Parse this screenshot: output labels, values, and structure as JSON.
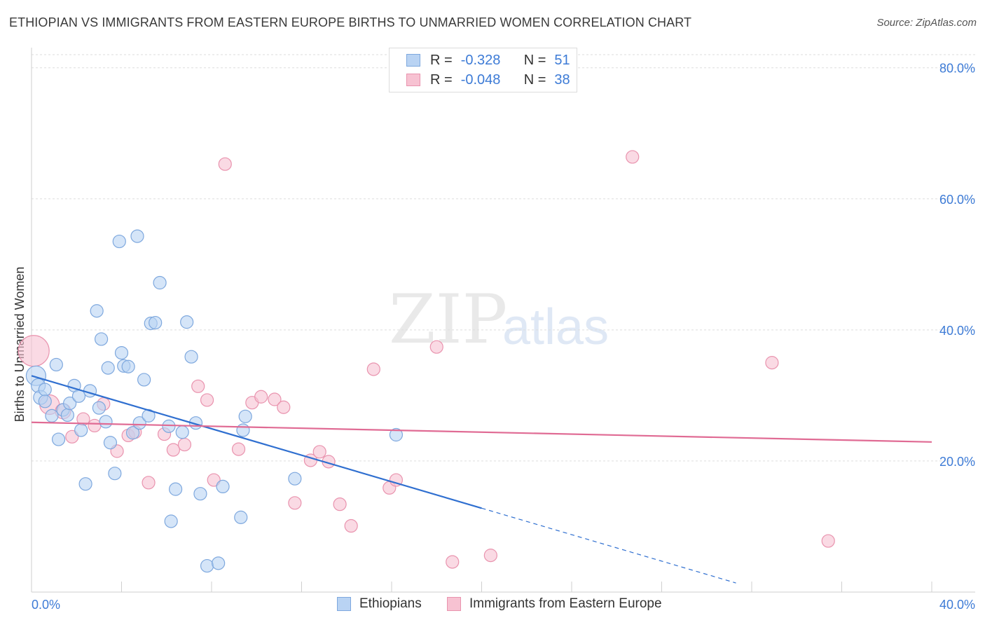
{
  "header": {
    "title": "ETHIOPIAN VS IMMIGRANTS FROM EASTERN EUROPE BIRTHS TO UNMARRIED WOMEN CORRELATION CHART",
    "source": "Source: ZipAtlas.com"
  },
  "watermark": {
    "zip": "ZIP",
    "atlas": "atlas"
  },
  "legend": {
    "rows": [
      {
        "r_label": "R =",
        "r_value": "-0.328",
        "n_label": "N =",
        "n_value": "51"
      },
      {
        "r_label": "R =",
        "r_value": "-0.048",
        "n_label": "N =",
        "n_value": "38"
      }
    ]
  },
  "bottom_legend": {
    "series1": "Ethiopians",
    "series2": "Immigrants from Eastern Europe"
  },
  "colors": {
    "blue_fill": "#b9d3f3",
    "blue_stroke": "#7ea8de",
    "blue_line": "#2f6fd0",
    "pink_fill": "#f7c2d2",
    "pink_stroke": "#e993ae",
    "pink_line": "#e06b94",
    "tick_text": "#3d7bd6"
  },
  "chart_data": {
    "type": "scatter",
    "title": "ETHIOPIAN VS IMMIGRANTS FROM EASTERN EUROPE BIRTHS TO UNMARRIED WOMEN CORRELATION CHART",
    "xlabel": "",
    "ylabel": "Births to Unmarried Women",
    "xlim": [
      0,
      40
    ],
    "ylim": [
      0,
      82
    ],
    "x_tick_labels": [
      "0.0%",
      "40.0%"
    ],
    "y_ticks": [
      20,
      40,
      60,
      80
    ],
    "y_tick_labels": [
      "20.0%",
      "40.0%",
      "60.0%",
      "80.0%"
    ],
    "grid": true,
    "legend_position": "top-center",
    "series": [
      {
        "name": "Ethiopians",
        "r": -0.328,
        "n": 51,
        "trend": {
          "x0": 0,
          "y0": 33.0,
          "x1": 20,
          "y1": 12.8,
          "dash_to_x": 31.3
        },
        "points": [
          [
            0.2,
            33.0,
            14
          ],
          [
            0.3,
            31.5,
            10
          ],
          [
            0.4,
            29.7,
            10
          ],
          [
            0.6,
            30.9,
            9
          ],
          [
            0.6,
            29.1,
            9
          ],
          [
            0.9,
            26.9,
            9
          ],
          [
            1.1,
            34.7,
            9
          ],
          [
            1.2,
            23.3,
            9
          ],
          [
            1.4,
            27.8,
            9
          ],
          [
            1.6,
            27.0,
            9
          ],
          [
            1.7,
            28.8,
            9
          ],
          [
            1.9,
            31.5,
            9
          ],
          [
            2.1,
            29.9,
            9
          ],
          [
            2.2,
            24.7,
            9
          ],
          [
            2.4,
            16.5,
            9
          ],
          [
            2.6,
            30.7,
            9
          ],
          [
            2.9,
            42.9,
            9
          ],
          [
            3.0,
            28.1,
            9
          ],
          [
            3.1,
            38.6,
            9
          ],
          [
            3.3,
            26.0,
            9
          ],
          [
            3.4,
            34.2,
            9
          ],
          [
            3.5,
            22.8,
            9
          ],
          [
            3.7,
            18.1,
            9
          ],
          [
            3.9,
            53.5,
            9
          ],
          [
            4.0,
            36.5,
            9
          ],
          [
            4.1,
            34.5,
            9
          ],
          [
            4.3,
            34.4,
            9
          ],
          [
            4.5,
            24.3,
            9
          ],
          [
            4.7,
            54.3,
            9
          ],
          [
            4.8,
            25.8,
            9
          ],
          [
            5.0,
            32.4,
            9
          ],
          [
            5.2,
            26.9,
            9
          ],
          [
            5.3,
            41.0,
            9
          ],
          [
            5.5,
            41.1,
            9
          ],
          [
            5.7,
            47.2,
            9
          ],
          [
            6.1,
            25.3,
            9
          ],
          [
            6.2,
            10.8,
            9
          ],
          [
            6.4,
            15.7,
            9
          ],
          [
            6.7,
            24.4,
            9
          ],
          [
            6.9,
            41.2,
            9
          ],
          [
            7.1,
            35.9,
            9
          ],
          [
            7.3,
            25.8,
            9
          ],
          [
            7.5,
            15.0,
            9
          ],
          [
            7.8,
            4.0,
            9
          ],
          [
            8.3,
            4.4,
            9
          ],
          [
            8.5,
            16.1,
            9
          ],
          [
            9.3,
            11.4,
            9
          ],
          [
            9.4,
            24.7,
            9
          ],
          [
            9.5,
            26.8,
            9
          ],
          [
            11.7,
            17.3,
            9
          ],
          [
            16.2,
            24.0,
            9
          ]
        ]
      },
      {
        "name": "Immigrants from Eastern Europe",
        "r": -0.048,
        "n": 38,
        "trend": {
          "x0": 0,
          "y0": 25.9,
          "x1": 40,
          "y1": 22.9
        },
        "points": [
          [
            0.1,
            36.8,
            22
          ],
          [
            0.8,
            28.6,
            14
          ],
          [
            1.4,
            27.6,
            11
          ],
          [
            1.8,
            23.7,
            9
          ],
          [
            2.3,
            26.4,
            9
          ],
          [
            2.8,
            25.4,
            9
          ],
          [
            3.2,
            28.7,
            9
          ],
          [
            3.8,
            21.5,
            9
          ],
          [
            4.3,
            23.9,
            9
          ],
          [
            4.6,
            24.4,
            9
          ],
          [
            5.2,
            16.7,
            9
          ],
          [
            5.9,
            24.1,
            9
          ],
          [
            6.3,
            21.7,
            9
          ],
          [
            6.8,
            22.5,
            9
          ],
          [
            7.4,
            31.4,
            9
          ],
          [
            7.8,
            29.3,
            9
          ],
          [
            8.1,
            17.1,
            9
          ],
          [
            8.6,
            65.3,
            9
          ],
          [
            9.2,
            21.8,
            9
          ],
          [
            9.8,
            28.9,
            9
          ],
          [
            10.2,
            29.8,
            9
          ],
          [
            10.8,
            29.4,
            9
          ],
          [
            11.2,
            28.2,
            9
          ],
          [
            11.7,
            13.6,
            9
          ],
          [
            12.4,
            20.1,
            9
          ],
          [
            12.8,
            21.4,
            9
          ],
          [
            13.2,
            19.9,
            9
          ],
          [
            13.7,
            13.4,
            9
          ],
          [
            14.2,
            10.1,
            9
          ],
          [
            15.2,
            34.0,
            9
          ],
          [
            15.9,
            15.9,
            9
          ],
          [
            16.2,
            17.1,
            9
          ],
          [
            18.0,
            37.4,
            9
          ],
          [
            18.7,
            4.6,
            9
          ],
          [
            20.4,
            5.6,
            9
          ],
          [
            26.7,
            66.4,
            9
          ],
          [
            32.9,
            35.0,
            9
          ],
          [
            35.4,
            7.8,
            9
          ]
        ]
      }
    ]
  }
}
